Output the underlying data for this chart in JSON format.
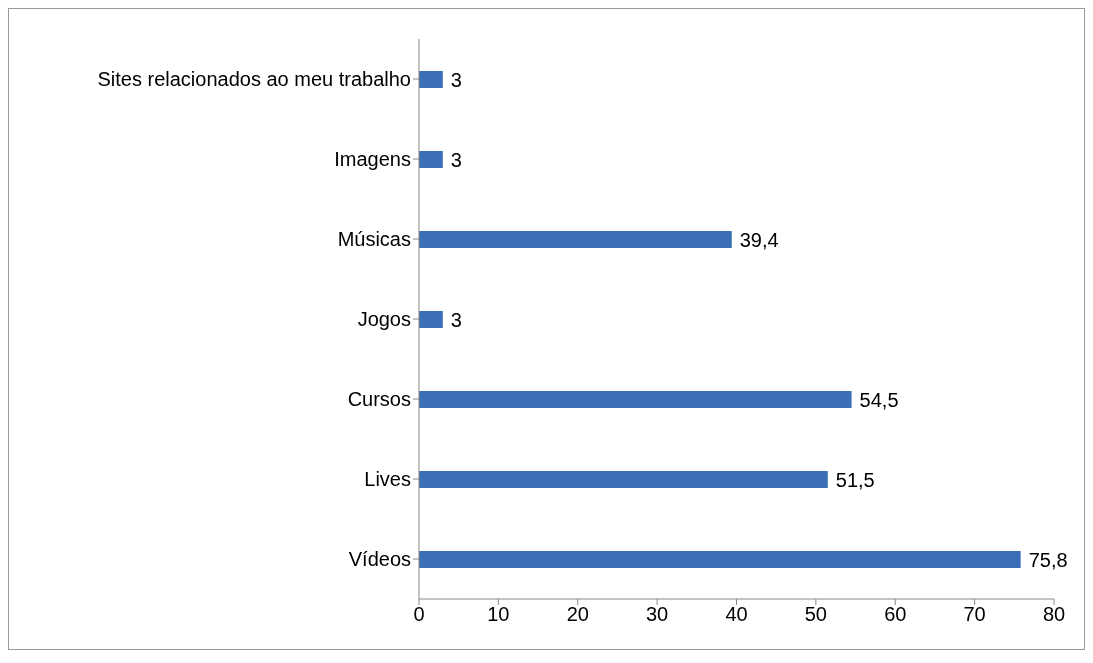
{
  "chart_data": {
    "type": "bar",
    "orientation": "horizontal",
    "categories": [
      "Sites relacionados ao meu trabalho",
      "Imagens",
      "Músicas",
      "Jogos",
      "Cursos",
      "Lives",
      "Vídeos"
    ],
    "values": [
      3,
      3,
      39.4,
      3,
      54.5,
      51.5,
      75.8
    ],
    "value_labels": [
      "3",
      "3",
      "39,4",
      "3",
      "54,5",
      "51,5",
      "75,8"
    ],
    "color": "#3a6fb8",
    "xlim": [
      0,
      80
    ],
    "xticks": [
      0,
      10,
      20,
      30,
      40,
      50,
      60,
      70,
      80
    ],
    "grid": false,
    "legend": false
  }
}
